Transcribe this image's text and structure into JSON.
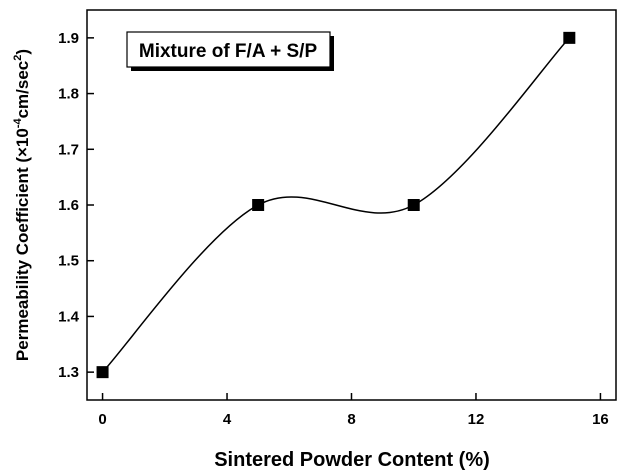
{
  "chart_data": {
    "type": "line",
    "xlabel": "Sintered Powder Content (%)",
    "ylabel": [
      "Permeability Coefficient (×10",
      "-4",
      "cm/sec",
      "2",
      ")"
    ],
    "annotation": "Mixture of F/A + S/P",
    "x": [
      0,
      5,
      10,
      15
    ],
    "series": [
      {
        "name": "Mixture of F/A + S/P",
        "color": "#000000",
        "values": [
          1.3,
          1.6,
          1.6,
          1.9
        ]
      }
    ],
    "xlim": [
      -0.5,
      16.5
    ],
    "xticks": [
      0,
      4,
      8,
      12,
      16
    ],
    "ylim": [
      1.25,
      1.95
    ],
    "yticks": [
      1.3,
      1.4,
      1.5,
      1.6,
      1.7,
      1.8,
      1.9
    ],
    "smooth": true,
    "marker": "square"
  }
}
